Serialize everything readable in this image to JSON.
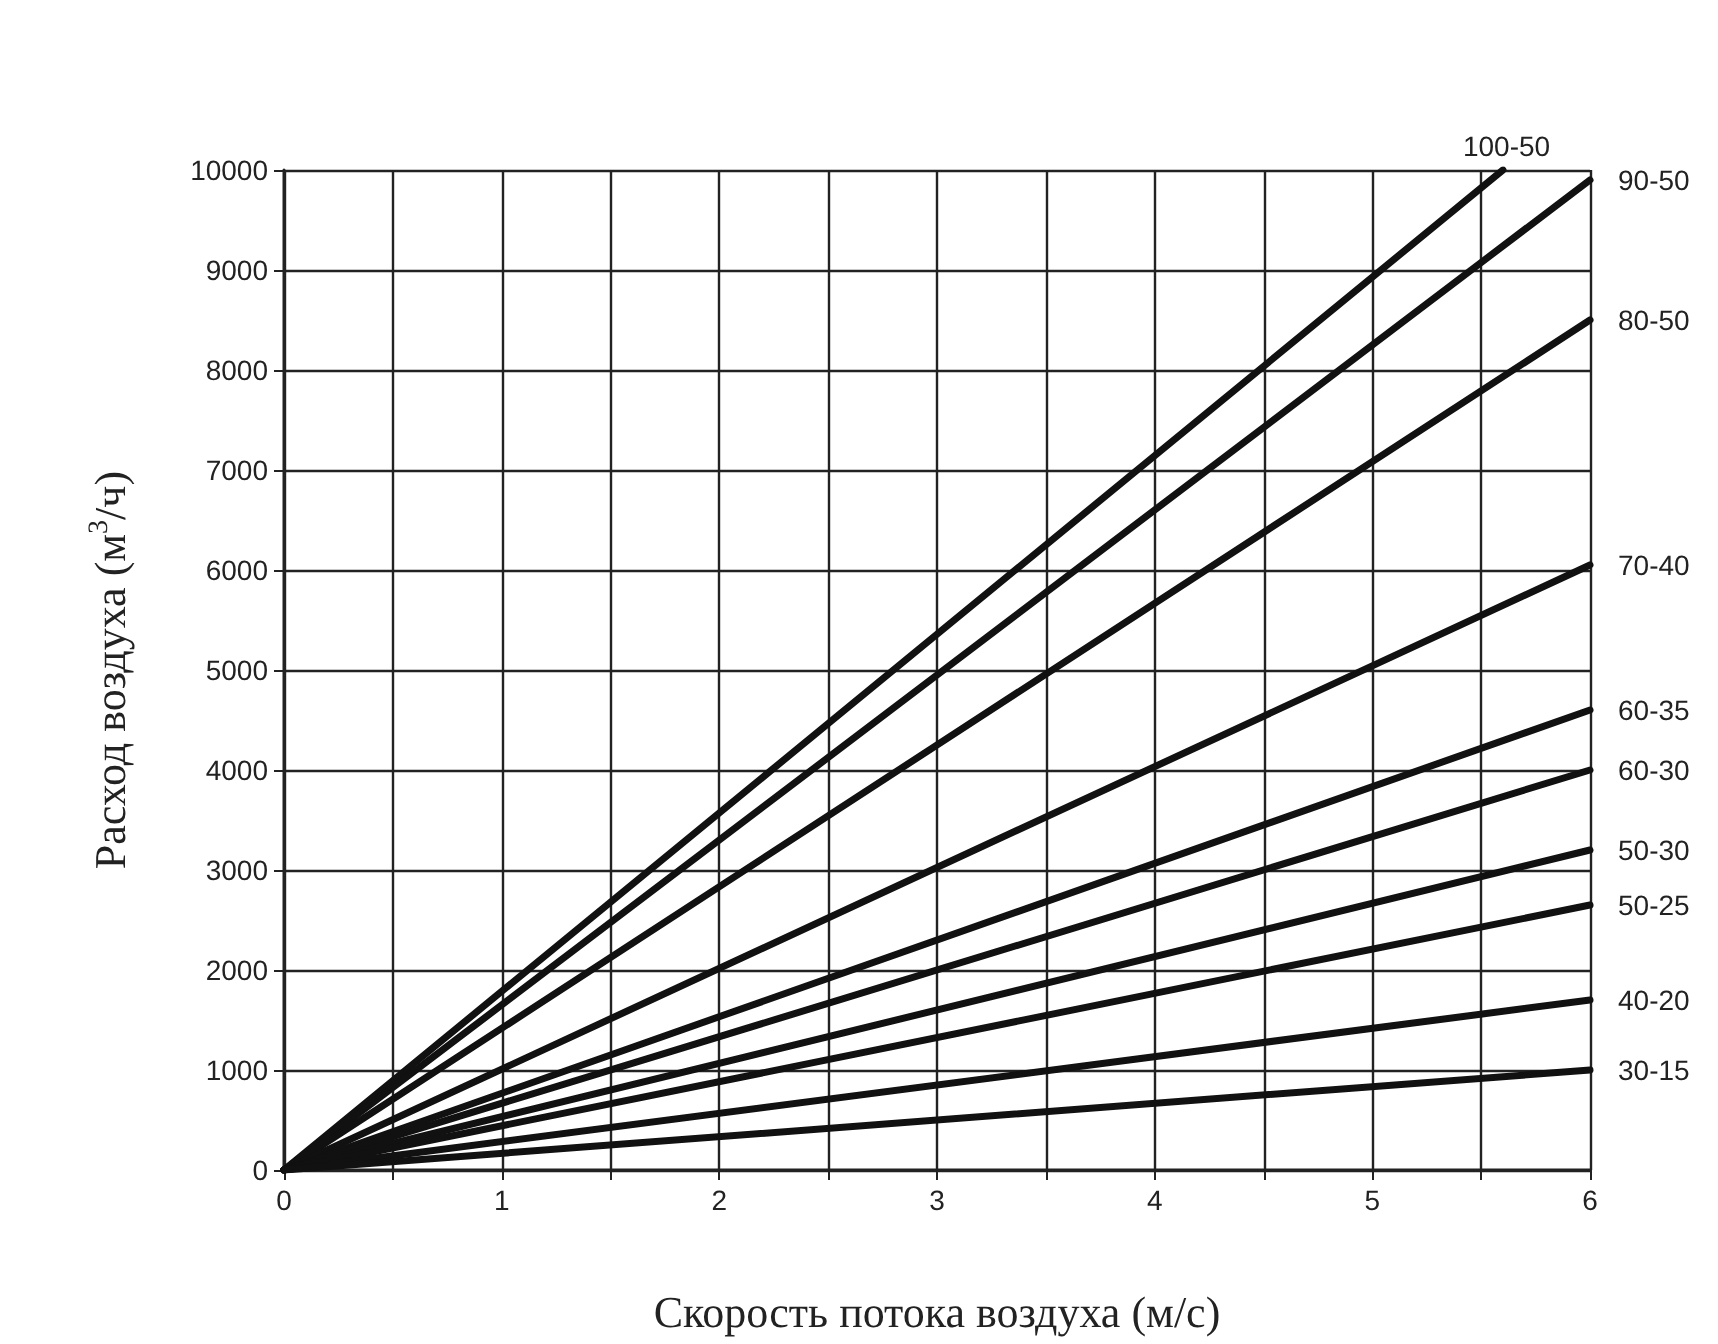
{
  "chart_data": {
    "type": "line",
    "xlabel": "Скорость потока воздуха (м/с)",
    "ylabel": "Расход воздуха (м$^{3}$/ч)",
    "xlim": [
      0,
      6
    ],
    "xticks": [
      0,
      {
        "value": 0.5,
        "label": null
      },
      1,
      {
        "value": 1.5,
        "label": null
      },
      2,
      {
        "value": 2.5,
        "label": null
      },
      3,
      {
        "value": 3.5,
        "label": null
      },
      4,
      {
        "value": 4.5,
        "label": null
      },
      5,
      {
        "value": 5.5,
        "label": null
      },
      6
    ],
    "ylim": [
      0,
      10000
    ],
    "yticks": [
      0,
      1000,
      2000,
      3000,
      4000,
      5000,
      6000,
      7000,
      8000,
      9000,
      10000
    ],
    "grid": true,
    "legend": false,
    "marker": "none",
    "line_style": "solid",
    "series": [
      {
        "name": "100-50",
        "color": "#111111",
        "x": [
          0,
          5.6
        ],
        "values": [
          0,
          10000
        ]
      },
      {
        "name": "90-50",
        "color": "#111111",
        "x": [
          0,
          6
        ],
        "values": [
          0,
          9900
        ]
      },
      {
        "name": "80-50",
        "color": "#111111",
        "x": [
          0,
          6
        ],
        "values": [
          0,
          8500
        ]
      },
      {
        "name": "70-40",
        "color": "#111111",
        "x": [
          0,
          6
        ],
        "values": [
          0,
          6050
        ]
      },
      {
        "name": "60-35",
        "color": "#111111",
        "x": [
          0,
          6
        ],
        "values": [
          0,
          4600
        ]
      },
      {
        "name": "60-30",
        "color": "#111111",
        "x": [
          0,
          6
        ],
        "values": [
          0,
          4000
        ]
      },
      {
        "name": "50-30",
        "color": "#111111",
        "x": [
          0,
          6
        ],
        "values": [
          0,
          3200
        ]
      },
      {
        "name": "50-25",
        "color": "#111111",
        "x": [
          0,
          6
        ],
        "values": [
          0,
          2650
        ]
      },
      {
        "name": "40-20",
        "color": "#111111",
        "x": [
          0,
          6
        ],
        "values": [
          0,
          1700
        ]
      },
      {
        "name": "30-15",
        "color": "#111111",
        "x": [
          0,
          6
        ],
        "values": [
          0,
          1000
        ]
      }
    ]
  }
}
